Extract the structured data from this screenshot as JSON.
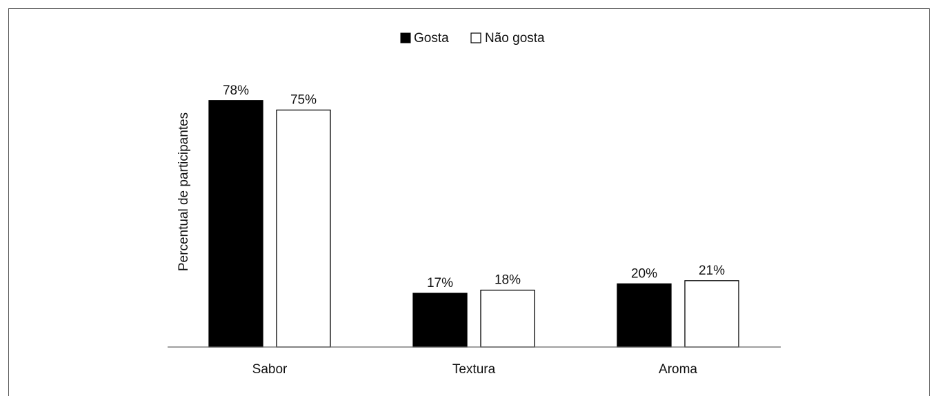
{
  "chart_data": {
    "type": "bar",
    "categories": [
      "Sabor",
      "Textura",
      "Aroma"
    ],
    "series": [
      {
        "name": "Gosta",
        "values": [
          78,
          17,
          20
        ],
        "color": "#000000"
      },
      {
        "name": "Não gosta",
        "values": [
          75,
          18,
          21
        ],
        "color": "#ffffff"
      }
    ],
    "value_labels": [
      [
        "78%",
        "17%",
        "20%"
      ],
      [
        "75%",
        "18%",
        "21%"
      ]
    ],
    "ylabel": "Percentual de participantes",
    "xlabel": "",
    "ylim": [
      0,
      80
    ],
    "legend_position": "top-center",
    "grid": false
  }
}
